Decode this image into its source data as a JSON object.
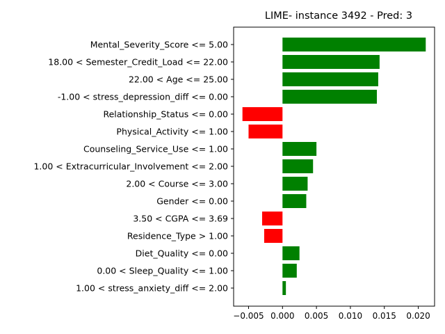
{
  "chart_data": {
    "type": "bar",
    "orientation": "horizontal",
    "title": "LIME- instance 3492 - Pred: 3",
    "xlabel": "",
    "ylabel": "",
    "xlim": [
      -0.0072,
      0.0224
    ],
    "xticks": [
      -0.005,
      0.0,
      0.005,
      0.01,
      0.015,
      0.02
    ],
    "xtick_labels": [
      "−0.005",
      "0.000",
      "0.005",
      "0.010",
      "0.015",
      "0.020"
    ],
    "grid": false,
    "positive_color": "#008000",
    "negative_color": "#ff0000",
    "categories": [
      "Mental_Severity_Score <= 5.00",
      "18.00 < Semester_Credit_Load <= 22.00",
      "22.00 < Age <= 25.00",
      "-1.00 < stress_depression_diff <= 0.00",
      "Relationship_Status <= 0.00",
      "Physical_Activity <= 1.00",
      "Counseling_Service_Use <= 1.00",
      "1.00 < Extracurricular_Involvement <= 2.00",
      "2.00 < Course <= 3.00",
      "Gender <= 0.00",
      "3.50 < CGPA <= 3.69",
      "Residence_Type > 1.00",
      "Diet_Quality <= 0.00",
      "0.00 < Sleep_Quality <= 1.00",
      "1.00 < stress_anxiety_diff <= 2.00"
    ],
    "values": [
      0.0211,
      0.0143,
      0.0141,
      0.0139,
      -0.0059,
      -0.005,
      0.005,
      0.0045,
      0.0037,
      0.0035,
      -0.003,
      -0.0027,
      0.0025,
      0.0021,
      0.0005
    ]
  }
}
